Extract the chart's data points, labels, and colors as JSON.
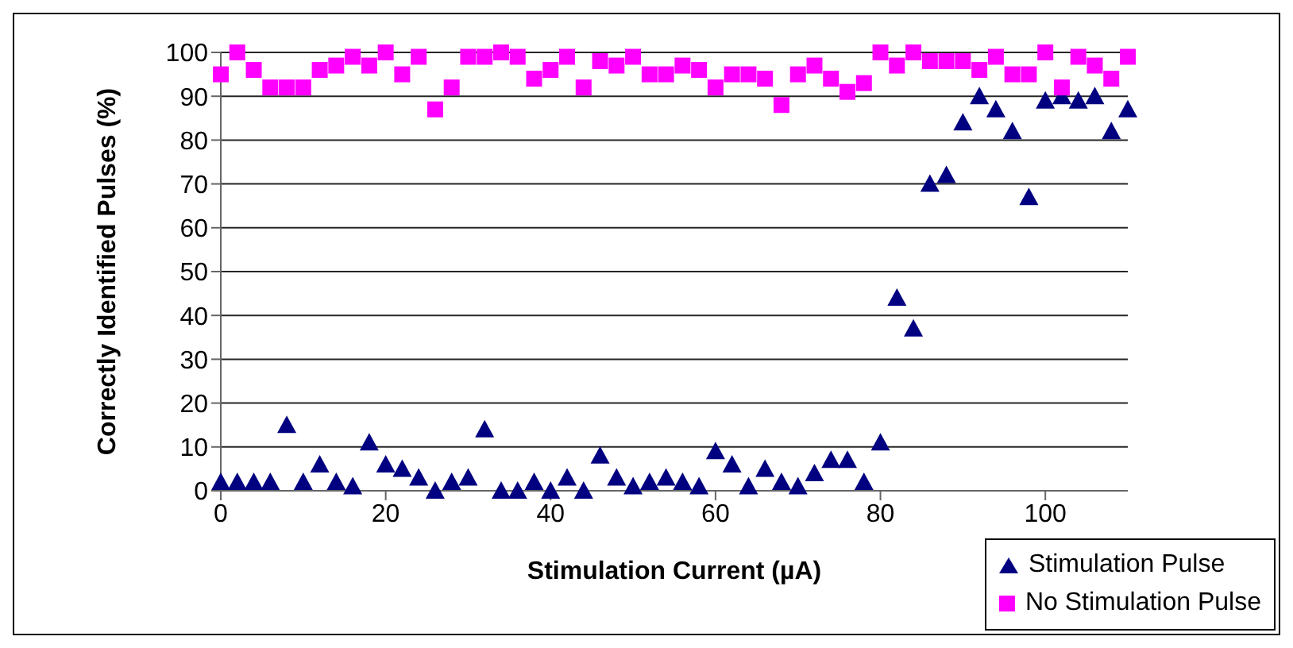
{
  "chart_data": {
    "type": "scatter",
    "xlabel": "Stimulation Current (µA)",
    "ylabel": "Correctly Identified Pulses (%)",
    "x": [
      0,
      2,
      4,
      6,
      8,
      10,
      12,
      14,
      16,
      18,
      20,
      22,
      24,
      26,
      28,
      30,
      32,
      34,
      36,
      38,
      40,
      42,
      44,
      46,
      48,
      50,
      52,
      54,
      56,
      58,
      60,
      62,
      64,
      66,
      68,
      70,
      72,
      74,
      76,
      78,
      80,
      82,
      84,
      86,
      88,
      90,
      92,
      94,
      96,
      98,
      100,
      102,
      104,
      106,
      108,
      110
    ],
    "series": [
      {
        "name": "Stimulation Pulse",
        "color": "#000080",
        "marker": "triangle",
        "values": [
          2,
          2,
          2,
          2,
          15,
          2,
          6,
          2,
          1,
          11,
          6,
          5,
          3,
          0,
          2,
          3,
          14,
          0,
          0,
          2,
          0,
          3,
          0,
          8,
          3,
          1,
          2,
          3,
          2,
          1,
          9,
          6,
          1,
          5,
          2,
          1,
          4,
          7,
          7,
          2,
          11,
          44,
          37,
          70,
          72,
          84,
          90,
          87,
          82,
          67,
          89,
          90,
          89,
          90,
          82,
          87
        ]
      },
      {
        "name": "No Stimulation Pulse",
        "color": "#ff00ff",
        "marker": "square",
        "values": [
          95,
          100,
          96,
          92,
          92,
          92,
          96,
          97,
          99,
          97,
          100,
          95,
          99,
          87,
          92,
          99,
          99,
          100,
          99,
          94,
          96,
          99,
          92,
          98,
          97,
          99,
          95,
          95,
          97,
          96,
          92,
          95,
          95,
          94,
          88,
          95,
          97,
          94,
          91,
          93,
          100,
          97,
          100,
          98,
          98,
          98,
          96,
          99,
          95,
          95,
          100,
          92,
          99,
          97,
          94,
          99
        ]
      }
    ],
    "xlim": [
      0,
      110
    ],
    "xticks": [
      0,
      20,
      40,
      60,
      80,
      100
    ],
    "ylim": [
      0,
      100
    ],
    "yticks": [
      0,
      10,
      20,
      30,
      40,
      50,
      60,
      70,
      80,
      90,
      100
    ],
    "grid": "y",
    "legend": "bottom right"
  }
}
